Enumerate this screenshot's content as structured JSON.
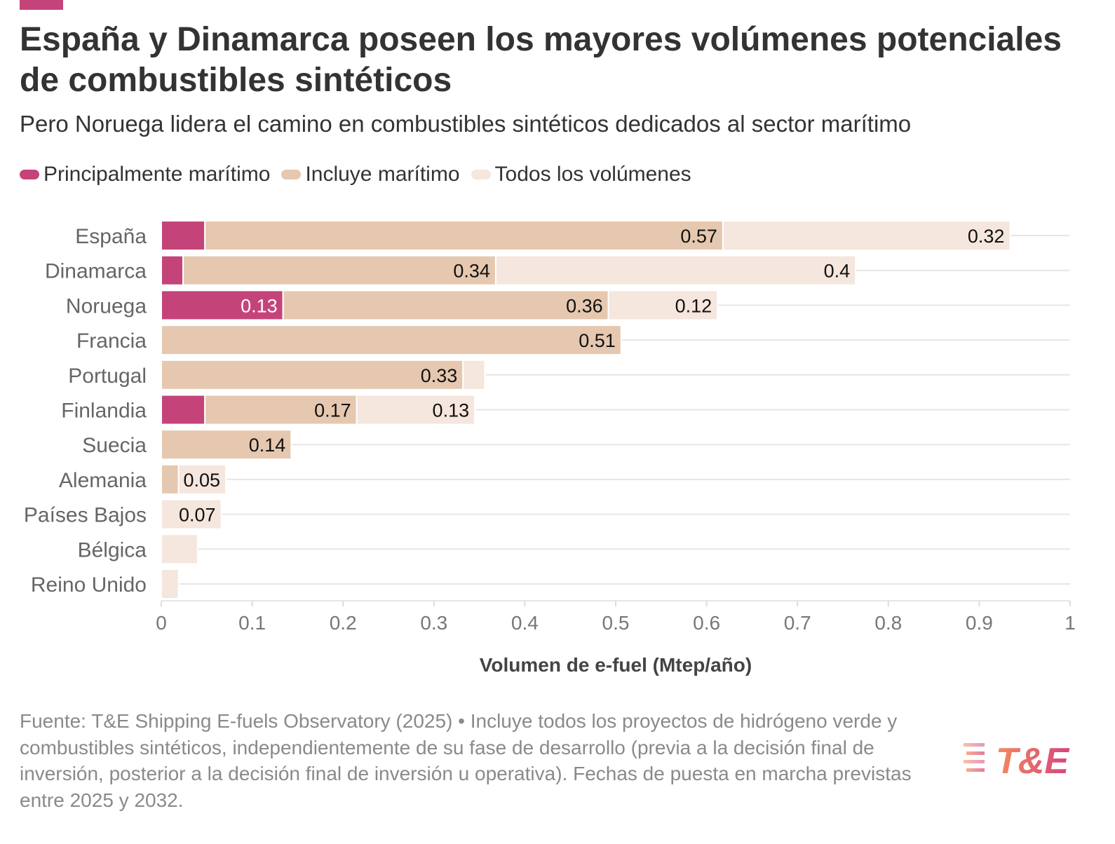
{
  "header": {
    "title": "España y Dinamarca poseen los mayores volúmenes potenciales de combustibles sintéticos",
    "subtitle": "Pero Noruega lidera el camino en combustibles sintéticos dedicados al sector marítimo"
  },
  "legend": {
    "items": [
      {
        "label": "Principalmente marítimo",
        "color": "#c4447a"
      },
      {
        "label": "Incluye marítimo",
        "color": "#e5c8af"
      },
      {
        "label": "Todos los volúmenes",
        "color": "#f5e6de"
      }
    ]
  },
  "chart_data": {
    "type": "stacked-bar-horizontal",
    "xlabel": "Volumen de e-fuel (Mtep/año)",
    "xlim": [
      0,
      1
    ],
    "xticks": [
      "0",
      "0.1",
      "0.2",
      "0.3",
      "0.4",
      "0.5",
      "0.6",
      "0.7",
      "0.8",
      "0.9",
      "1"
    ],
    "grid": true,
    "legend_position": "top-left",
    "categories": [
      "España",
      "Dinamarca",
      "Noruega",
      "Francia",
      "Portugal",
      "Finlandia",
      "Suecia",
      "Alemania",
      "Países Bajos",
      "Bélgica",
      "Reino Unido"
    ],
    "series": [
      {
        "name": "Principalmente marítimo",
        "color": "#c4447a",
        "values": [
          0.048,
          0.024,
          0.134,
          0,
          0,
          0.048,
          0,
          0,
          0,
          0,
          0
        ],
        "labels": [
          "",
          "",
          "0.13",
          "",
          "",
          "",
          "",
          "",
          "",
          "",
          ""
        ]
      },
      {
        "name": "Incluye marítimo",
        "color": "#e5c8af",
        "values": [
          0.57,
          0.344,
          0.358,
          0.506,
          0.332,
          0.167,
          0.143,
          0.019,
          0,
          0,
          0
        ],
        "labels": [
          "0.57",
          "0.34",
          "0.36",
          "0.51",
          "0.33",
          "0.17",
          "0.14",
          "",
          "",
          "",
          ""
        ]
      },
      {
        "name": "Todos los volúmenes",
        "color": "#f5e6de",
        "values": [
          0.316,
          0.396,
          0.12,
          0,
          0.024,
          0.13,
          0,
          0.052,
          0.066,
          0.04,
          0.019
        ],
        "labels": [
          "0.32",
          "0.4",
          "0.12",
          "",
          "",
          "0.13",
          "",
          "0.05",
          "0.07",
          "",
          ""
        ]
      }
    ]
  },
  "footer": {
    "note": "Fuente: T&E Shipping E-fuels Observatory (2025) • Incluye todos los proyectos de hidrógeno verde y combustibles sintéticos, independientemente de su fase de desarrollo (previa a la decisión final de inversión, posterior a la decisión final de inversión u operativa). Fechas de puesta en marcha previstas entre 2025 y 2032.",
    "logo_text": "T&E",
    "logo_colors": [
      "#f58a5e",
      "#d4457d"
    ]
  }
}
